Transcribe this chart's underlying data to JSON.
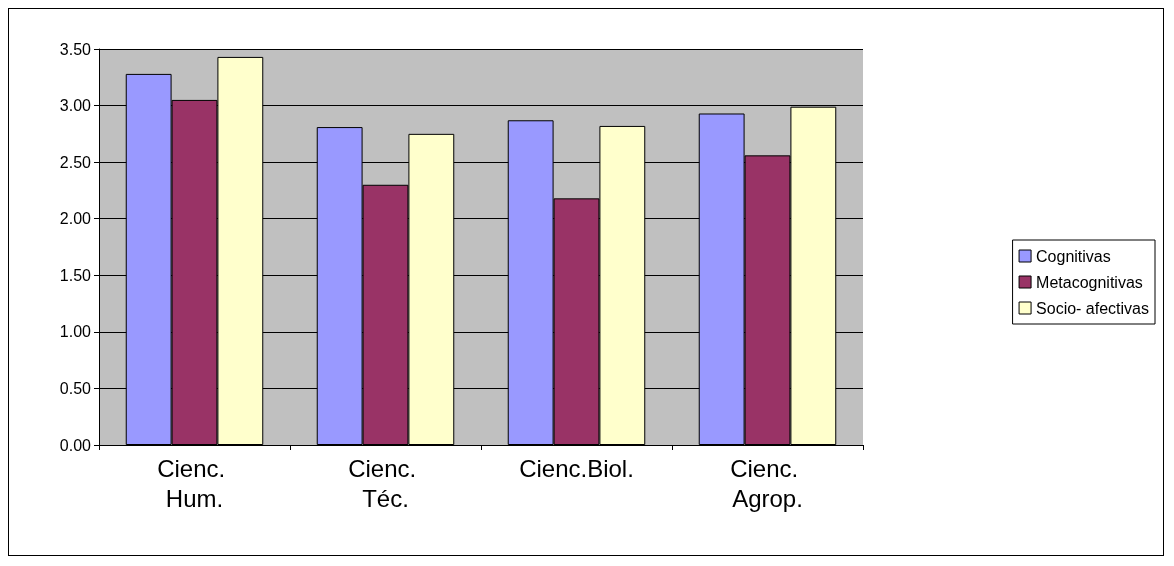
{
  "chart_data": {
    "type": "bar",
    "categories": [
      "Cienc. Hum.",
      "Cienc. Téc.",
      "Cienc.Biol.",
      "Cienc. Agrop."
    ],
    "series": [
      {
        "name": "Cognitivas",
        "color": "#9999ff",
        "values": [
          3.28,
          2.81,
          2.87,
          2.93
        ]
      },
      {
        "name": "Metacognitivas",
        "color": "#993366",
        "values": [
          3.05,
          2.3,
          2.18,
          2.56
        ]
      },
      {
        "name": "Socio- afectivas",
        "color": "#ffffcc",
        "values": [
          3.43,
          2.75,
          2.82,
          2.99
        ]
      }
    ],
    "ylim": [
      0,
      3.5
    ],
    "yticks": [
      {
        "value": 0,
        "label": "0.00"
      },
      {
        "value": 0.5,
        "label": "0.50"
      },
      {
        "value": 1,
        "label": "1.00"
      },
      {
        "value": 1.5,
        "label": "1.50"
      },
      {
        "value": 2,
        "label": "2.00"
      },
      {
        "value": 2.5,
        "label": "2.50"
      },
      {
        "value": 3,
        "label": "3.00"
      },
      {
        "value": 3.5,
        "label": "3.50"
      }
    ],
    "grid": "y",
    "legend": "right"
  }
}
